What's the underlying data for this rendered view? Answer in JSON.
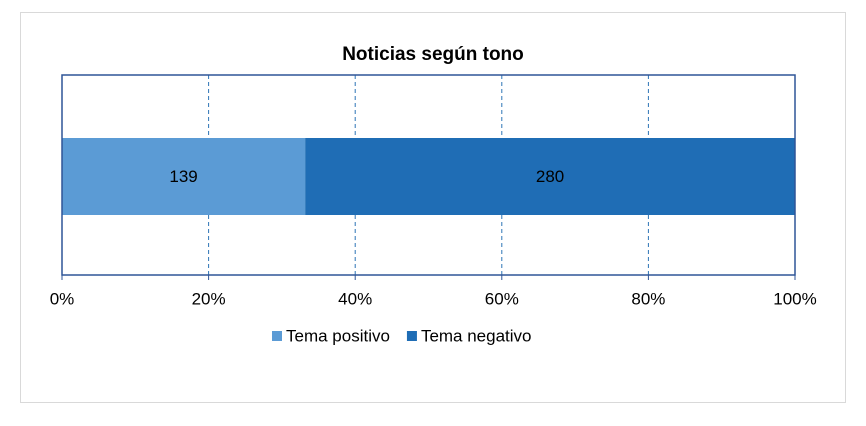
{
  "chart_data": {
    "type": "stacked_percent_bar",
    "title": "Noticias según tono",
    "orientation": "horizontal",
    "series": [
      {
        "name": "Tema positivo",
        "color": "#5b9bd5",
        "values": [
          139
        ]
      },
      {
        "name": "Tema negativo",
        "color": "#1f6db5",
        "values": [
          280
        ]
      }
    ],
    "xlim": [
      0,
      100
    ],
    "xticks": [
      {
        "value": 0,
        "label": "0%"
      },
      {
        "value": 20,
        "label": "20%"
      },
      {
        "value": 40,
        "label": "40%"
      },
      {
        "value": 60,
        "label": "60%"
      },
      {
        "value": 80,
        "label": "80%"
      },
      {
        "value": 100,
        "label": "100%"
      }
    ],
    "grid": true,
    "legend": "bottom"
  }
}
